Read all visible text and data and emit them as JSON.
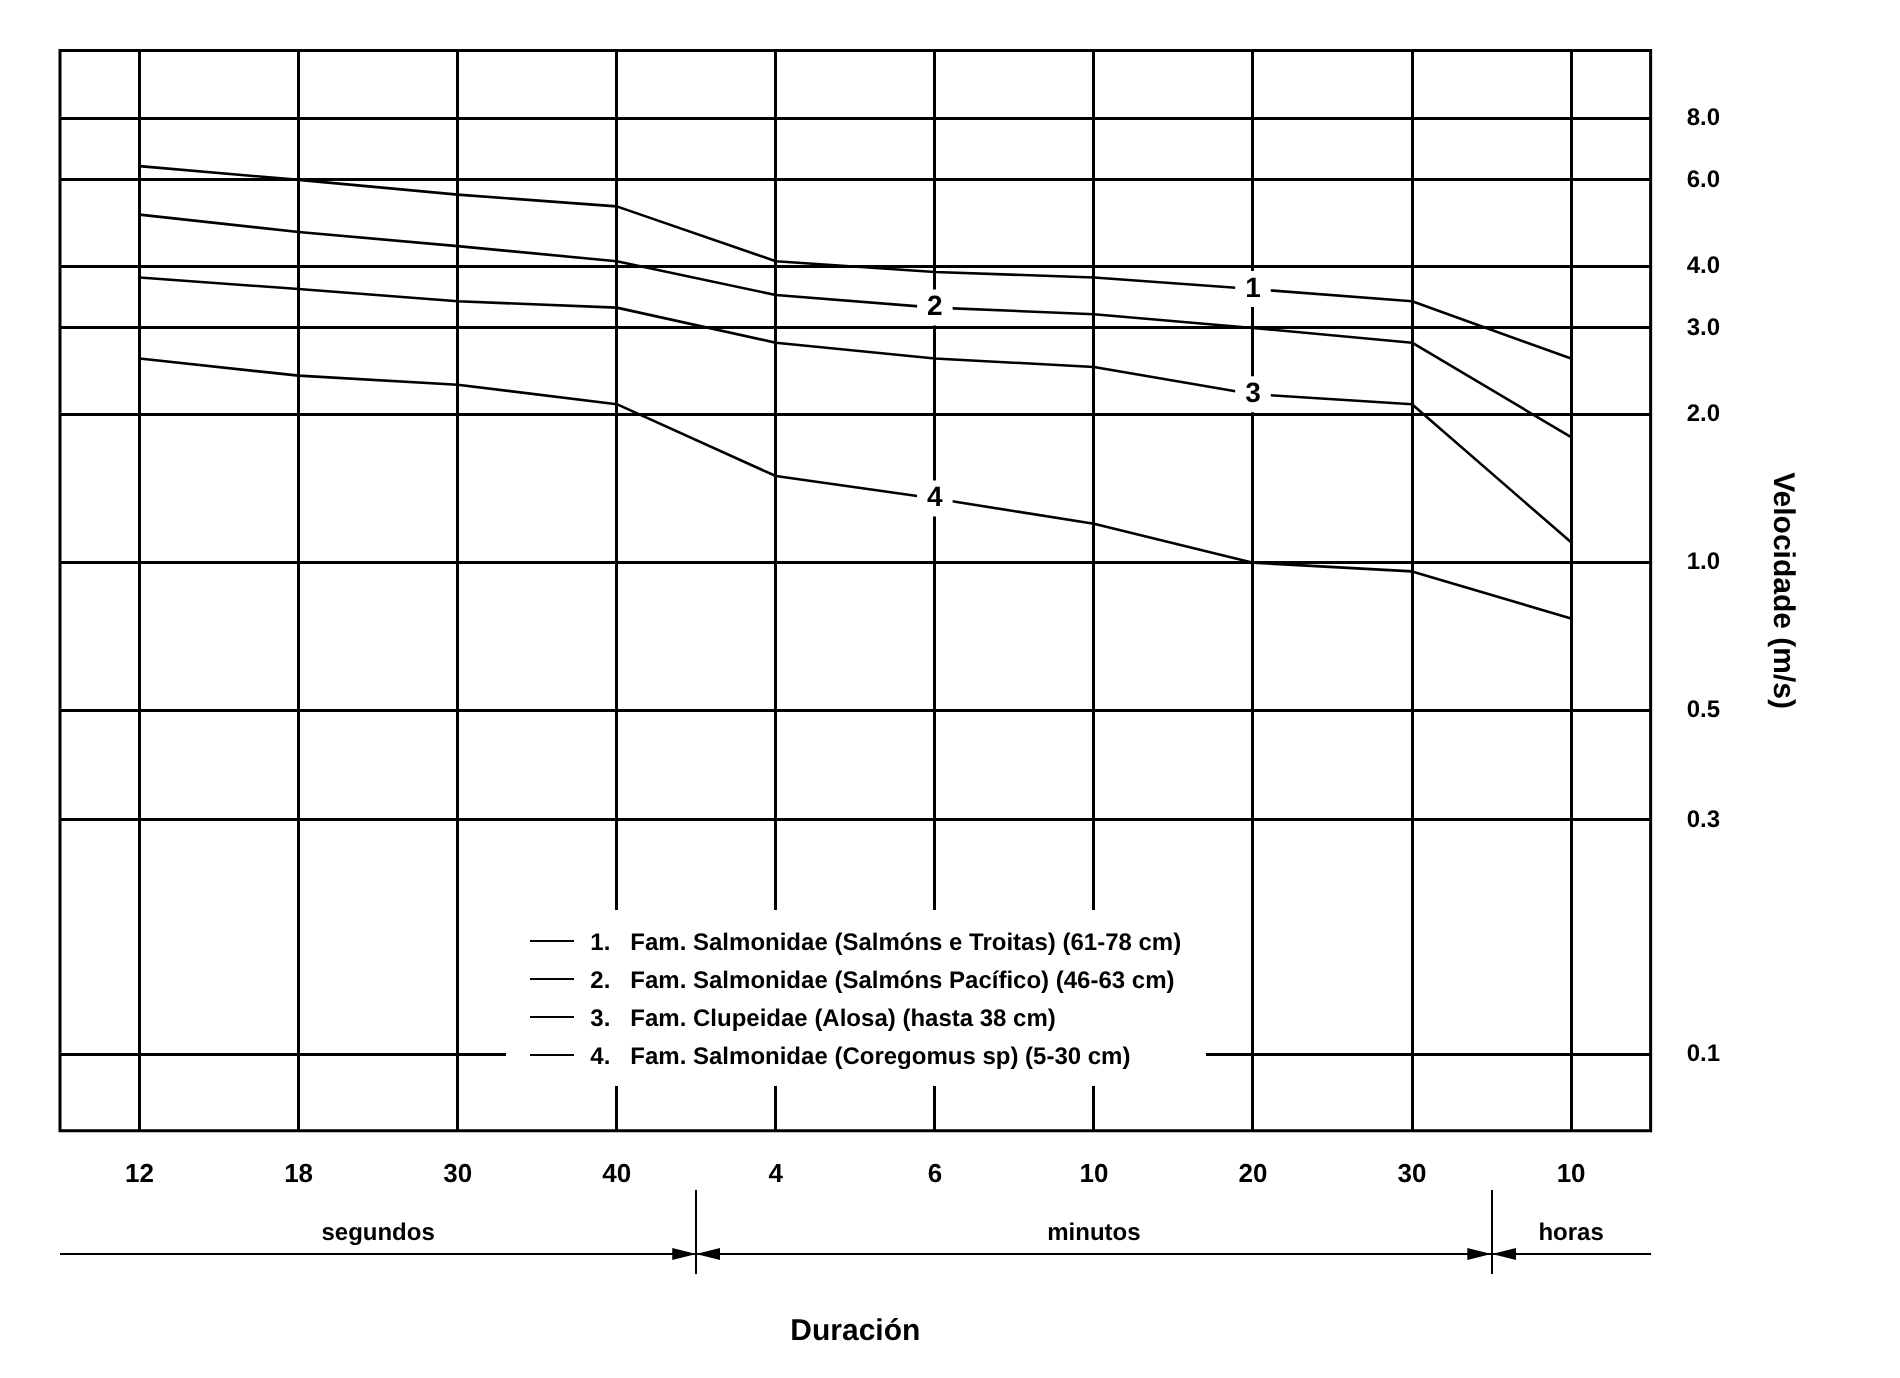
{
  "chart_data": {
    "type": "line",
    "xlabel": "Duración",
    "ylabel": "Velocidade (m/s)",
    "categories": [
      "12",
      "18",
      "30",
      "40",
      "4",
      "6",
      "10",
      "20",
      "30",
      "10"
    ],
    "series": [
      {
        "name": "1.   Fam. Salmonidae (Salmóns e Troitas) (61-78 cm)",
        "color": "#000000",
        "values": [
          6.4,
          6.0,
          5.6,
          5.3,
          4.1,
          3.9,
          3.8,
          3.6,
          3.4,
          2.6
        ]
      },
      {
        "name": "2.   Fam. Salmonidae (Salmóns Pacífico) (46-63 cm)",
        "color": "#000000",
        "values": [
          5.1,
          4.7,
          4.4,
          4.1,
          3.5,
          3.3,
          3.2,
          3.0,
          2.8,
          1.8
        ]
      },
      {
        "name": "3.   Fam. Clupeidae (Alosa) (hasta 38 cm)",
        "color": "#000000",
        "values": [
          3.8,
          3.6,
          3.4,
          3.3,
          2.8,
          2.6,
          2.5,
          2.2,
          2.1,
          1.1
        ]
      },
      {
        "name": "4.   Fam. Salmonidae (Coregomus sp) (5-30 cm)",
        "color": "#000000",
        "values": [
          2.6,
          2.4,
          2.3,
          2.1,
          1.5,
          1.35,
          1.2,
          1.0,
          0.96,
          0.77
        ]
      }
    ],
    "annotations": [
      {
        "text": "1",
        "x": "20",
        "y": 3.6
      },
      {
        "text": "2",
        "x": "6",
        "y": 3.3
      },
      {
        "text": "3",
        "x": "20",
        "y": 2.2
      },
      {
        "text": "4",
        "x": "6",
        "y": 1.35
      },
      "segundos",
      "minutos",
      "horas"
    ],
    "log": "y",
    "ylim": [
      0.07,
      11
    ],
    "yticks": [
      {
        "value": 8,
        "label": "8.0"
      },
      {
        "value": 6,
        "label": "6.0"
      },
      {
        "value": 4,
        "label": "4.0"
      },
      {
        "value": 3,
        "label": "3.0"
      },
      {
        "value": 2,
        "label": "2.0"
      },
      {
        "value": 1,
        "label": "1.0"
      },
      0.5,
      0.3,
      0.1
    ],
    "grid": true,
    "legend": "bottom",
    "marker": "none",
    "line_style": "solid"
  }
}
